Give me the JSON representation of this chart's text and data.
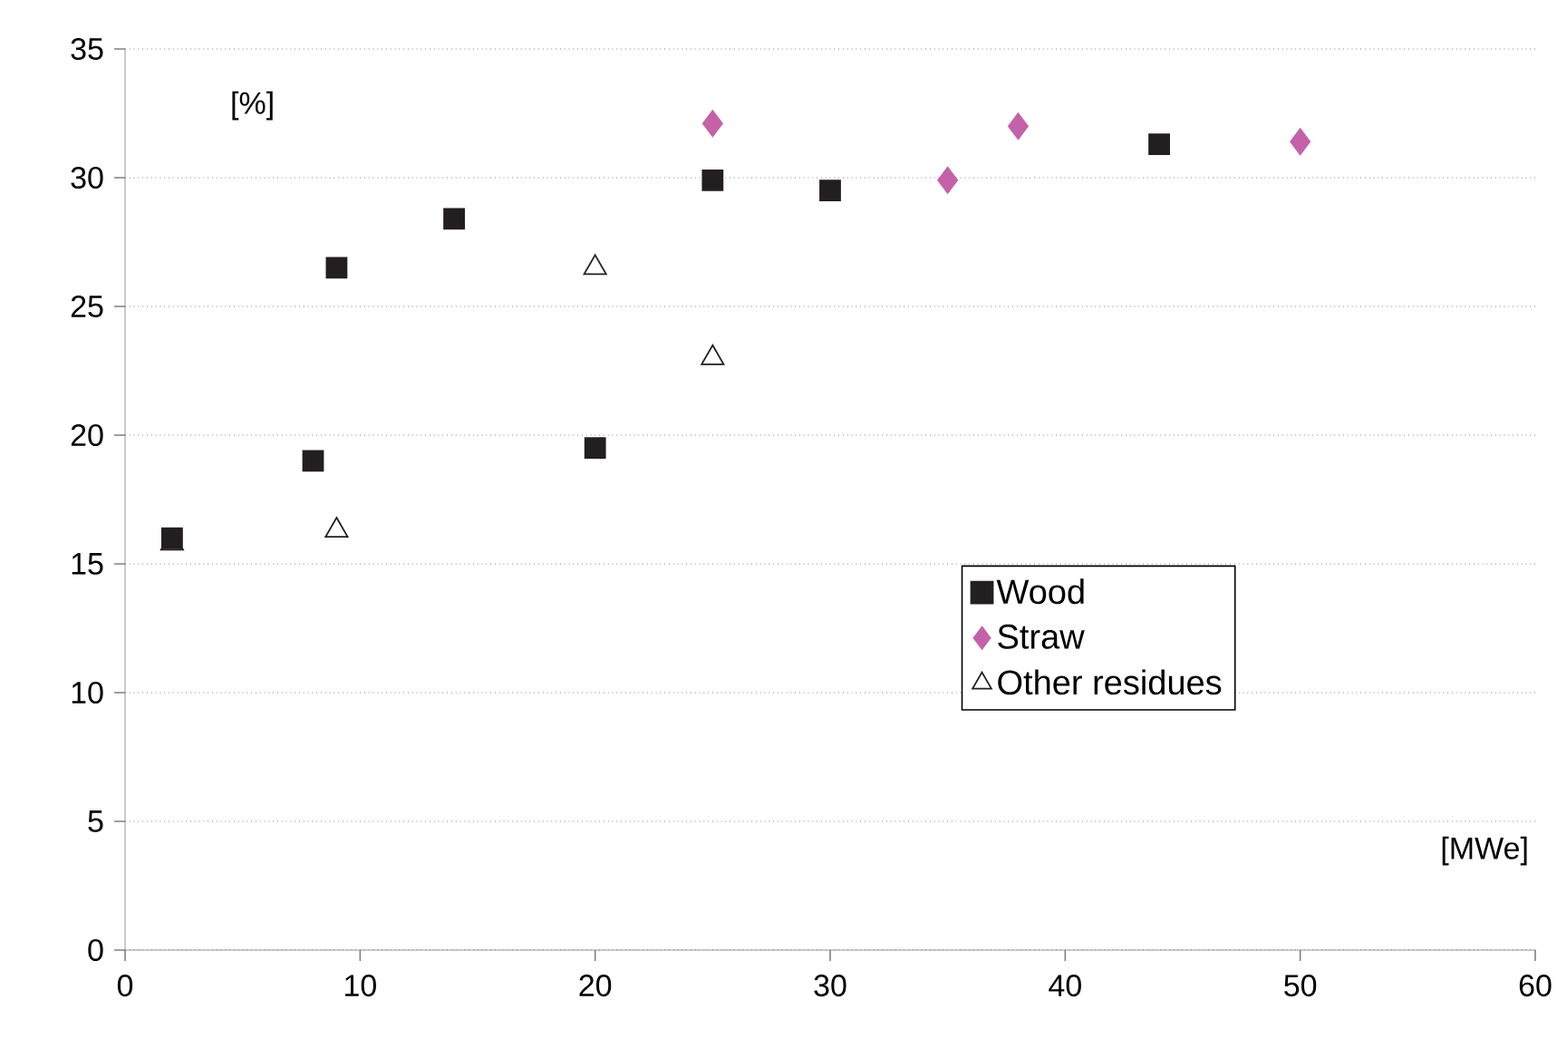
{
  "chart_data": {
    "type": "scatter",
    "xlabel": "[MWe]",
    "ylabel": "[%]",
    "xlim": [
      0,
      60
    ],
    "xticks": [
      0,
      10,
      20,
      30,
      40,
      50,
      60
    ],
    "ylim": [
      0,
      35
    ],
    "yticks": [
      0,
      5,
      10,
      15,
      20,
      25,
      30,
      35
    ],
    "grid": "y",
    "legend": "right",
    "series": [
      {
        "name": "Wood",
        "color": "#231f20",
        "marker": "square",
        "x": [
          2,
          8,
          9,
          14,
          20,
          25,
          30,
          44
        ],
        "values": [
          16,
          19,
          26.5,
          28.4,
          19.5,
          29.9,
          29.5,
          31.3
        ]
      },
      {
        "name": "Straw",
        "color": "#c561a9",
        "marker": "diamond",
        "x": [
          25,
          35,
          38,
          50
        ],
        "values": [
          32.1,
          29.9,
          32,
          31.4
        ]
      },
      {
        "name": "Other residues",
        "color": "#231f20",
        "marker": "triangle",
        "x": [
          2,
          9,
          20,
          25
        ],
        "values": [
          15.8,
          16.3,
          26.5,
          23
        ]
      }
    ]
  }
}
